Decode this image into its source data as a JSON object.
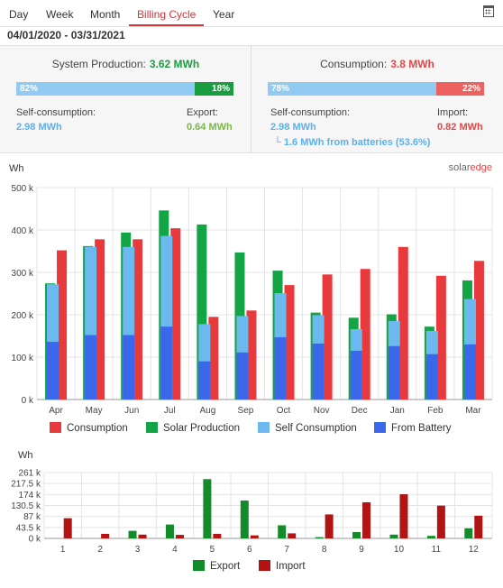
{
  "tabs": [
    {
      "label": "Day"
    },
    {
      "label": "Week"
    },
    {
      "label": "Month"
    },
    {
      "label": "Billing Cycle"
    },
    {
      "label": "Year"
    }
  ],
  "active_tab": "Billing Cycle",
  "date_range": "04/01/2020 - 03/31/2021",
  "production": {
    "title": "System Production:",
    "value": "3.62 MWh",
    "self_pct": "82%",
    "self_fraction": 0.82,
    "export_pct": "18%",
    "self_label": "Self-consumption:",
    "self_value": "2.98 MWh",
    "export_label": "Export:",
    "export_value": "0.64 MWh"
  },
  "consumption": {
    "title": "Consumption:",
    "value": "3.8 MWh",
    "self_pct": "78%",
    "self_fraction": 0.78,
    "import_pct": "22%",
    "self_label": "Self-consumption:",
    "self_value": "2.98 MWh",
    "batteries_value": "1.6 MWh from batteries (53.6%)",
    "import_label": "Import:",
    "import_value": "0.82 MWh"
  },
  "logo": {
    "solar": "solar",
    "edge": "edge"
  },
  "colors": {
    "consumption": "#e8393c",
    "production": "#13a445",
    "self_consumption": "#6bb9ef",
    "from_battery": "#3b67ea",
    "export": "#128c2a",
    "import": "#b21414"
  },
  "chart_data": [
    {
      "type": "bar",
      "ylabel": "Wh",
      "categories": [
        "Apr",
        "May",
        "Jun",
        "Jul",
        "Aug",
        "Sep",
        "Oct",
        "Nov",
        "Dec",
        "Jan",
        "Feb",
        "Mar"
      ],
      "y_ticks": [
        "0 k",
        "100 k",
        "200 k",
        "300 k",
        "400 k",
        "500 k"
      ],
      "ylim": [
        0,
        500000
      ],
      "grid": true,
      "legend_position": "bottom",
      "series": [
        {
          "name": "Consumption",
          "values": [
            352000,
            378000,
            378000,
            404000,
            195000,
            210000,
            270000,
            295000,
            308000,
            360000,
            292000,
            327000
          ]
        },
        {
          "name": "Solar Production",
          "values": [
            274000,
            362000,
            394000,
            446000,
            413000,
            347000,
            304000,
            205000,
            193000,
            201000,
            172000,
            281000
          ]
        },
        {
          "name": "Self Consumption",
          "values": [
            272000,
            360000,
            360000,
            386000,
            178000,
            197000,
            251000,
            199000,
            166000,
            185000,
            162000,
            237000
          ]
        },
        {
          "name": "From Battery",
          "values": [
            136000,
            152000,
            152000,
            172000,
            90000,
            111000,
            147000,
            132000,
            115000,
            126000,
            107000,
            130000
          ]
        }
      ]
    },
    {
      "type": "bar",
      "ylabel": "Wh",
      "categories": [
        "1",
        "2",
        "3",
        "4",
        "5",
        "6",
        "7",
        "8",
        "9",
        "10",
        "11",
        "12"
      ],
      "y_ticks": [
        "0 k",
        "43.5 k",
        "87 k",
        "130.5 k",
        "174 k",
        "217.5 k",
        "261 k"
      ],
      "ylim": [
        0,
        261000
      ],
      "grid": true,
      "legend_position": "bottom",
      "series": [
        {
          "name": "Export",
          "values": [
            0,
            0,
            30000,
            55000,
            235000,
            150000,
            52000,
            5000,
            25000,
            15000,
            10000,
            40000
          ]
        },
        {
          "name": "Import",
          "values": [
            80000,
            18000,
            15000,
            14000,
            18000,
            12000,
            20000,
            95000,
            143000,
            175000,
            130000,
            90000
          ]
        }
      ]
    }
  ]
}
